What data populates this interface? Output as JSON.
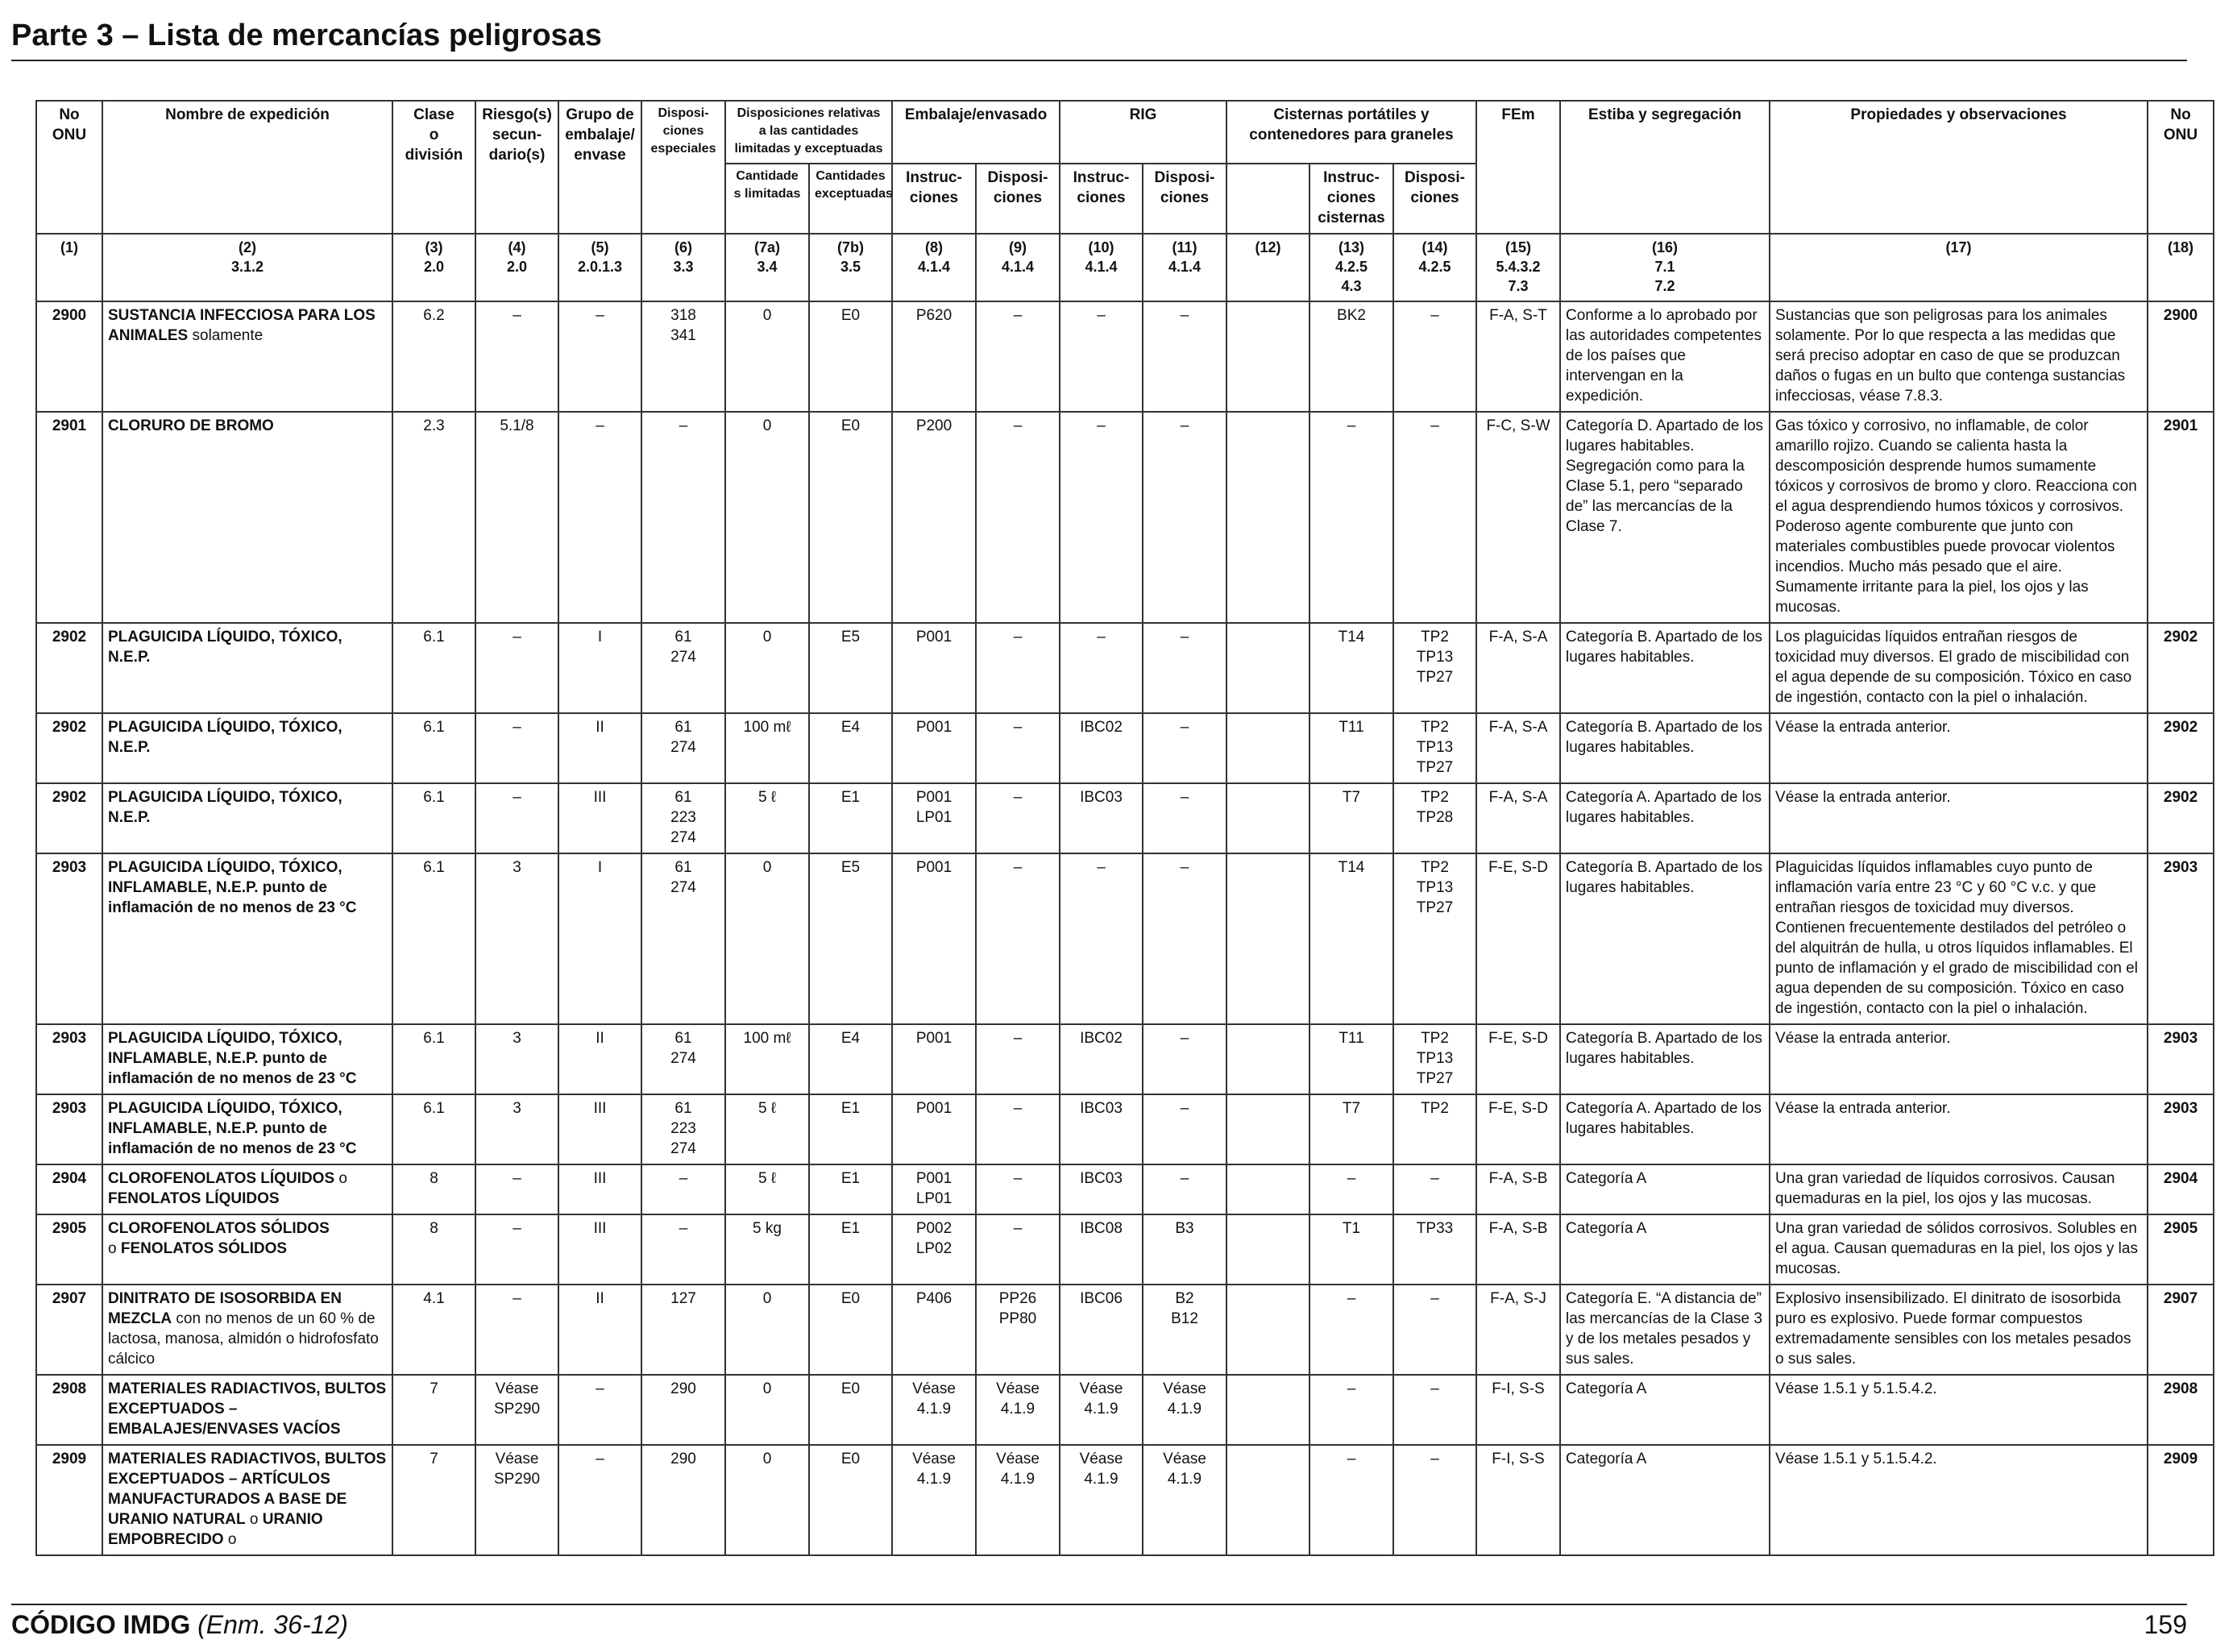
{
  "page": {
    "title": "Parte 3 – Lista de mercancías peligrosas",
    "footer_code": "CÓDIGO IMDG",
    "footer_edition": "(Enm. 36-12)",
    "page_number": "159"
  },
  "headers": {
    "no_onu": "No\nONU",
    "nombre": "Nombre de expedición",
    "clase": "Clase\no\ndivisión",
    "riesgos": "Riesgo(s)\nsecun-\ndario(s)",
    "grupo": "Grupo de\nembalaje/\nenvase",
    "disposiciones": "Disposi-\nciones\nespeciales",
    "cant_group": "Disposiciones relativas\na las cantidades\nlimitadas y exceptuadas",
    "cant_lim": "Cantidade\ns limitadas",
    "cant_exc": "Cantidades\nexceptuadas",
    "embalaje_group": "Embalaje/envasado",
    "emb_instr": "Instruc-\nciones",
    "emb_disp": "Disposi-\nciones",
    "rig_group": "RIG",
    "rig_instr": "Instruc-\nciones",
    "rig_disp": "Disposi-\nciones",
    "cist_group": "Cisternas portátiles y\ncontenedores para graneles",
    "cist_blank": "",
    "cist_instr": "Instruc-\nciones\ncisternas",
    "cist_disp": "Disposi-\nciones",
    "fem": "FEm",
    "estiba": "Estiba y segregación",
    "propiedades": "Propiedades y observaciones",
    "no_onu_right": "No\nONU"
  },
  "colnums": [
    "(1)",
    "(2)\n3.1.2",
    "(3)\n2.0",
    "(4)\n2.0",
    "(5)\n2.0.1.3",
    "(6)\n3.3",
    "(7a)\n3.4",
    "(7b)\n3.5",
    "(8)\n4.1.4",
    "(9)\n4.1.4",
    "(10)\n4.1.4",
    "(11)\n4.1.4",
    "(12)",
    "(13)\n4.2.5\n4.3",
    "(14)\n4.2.5",
    "(15)\n5.4.3.2\n7.3",
    "(16)\n7.1\n7.2",
    "(17)",
    "(18)"
  ],
  "rows": [
    {
      "un": "2900",
      "name": "SUSTANCIA INFECCIOSA PARA LOS ANIMALES",
      "name_suffix": " solamente",
      "clase": "6.2",
      "riesgo": "–",
      "grupo": "–",
      "disp": "318\n341",
      "cant_lim": "0",
      "cant_exc": "E0",
      "emb_instr": "P620",
      "emb_disp": "–",
      "rig_instr": "–",
      "rig_disp": "–",
      "c12": "",
      "cist_instr": "BK2",
      "cist_disp": "–",
      "fem": "F-A, S-T",
      "estiba": "Conforme a lo aprobado por las autoridades competentes de los países que intervengan en la expedición.",
      "prop": "Sustancias que son peligrosas para los animales solamente. Por lo que respecta a las medidas que será preciso adoptar en caso de que se produzcan daños o fugas en un bulto que contenga sustancias infecciosas, véase 7.8.3."
    },
    {
      "un": "2901",
      "name": "CLORURO DE BROMO",
      "name_suffix": "",
      "clase": "2.3",
      "riesgo": "5.1/8",
      "grupo": "–",
      "disp": "–",
      "cant_lim": "0",
      "cant_exc": "E0",
      "emb_instr": "P200",
      "emb_disp": "–",
      "rig_instr": "–",
      "rig_disp": "–",
      "c12": "",
      "cist_instr": "–",
      "cist_disp": "–",
      "fem": "F-C, S-W",
      "estiba": "Categoría D. Apartado de los lugares habitables. Segregación como para la Clase 5.1, pero “separado de” las mercancías de la Clase 7.",
      "prop": "Gas tóxico y corrosivo, no inflamable, de color amarillo rojizo. Cuando se calienta hasta la descomposición desprende humos sumamente tóxicos y corrosivos de bromo y cloro. Reacciona con el agua desprendiendo humos tóxicos y corrosivos. Poderoso agente comburente que junto con materiales combustibles puede provocar violentos incendios. Mucho más pesado que el aire. Sumamente irritante para la piel, los ojos y las mucosas."
    },
    {
      "un": "2902",
      "name": "PLAGUICIDA LÍQUIDO, TÓXICO, N.E.P.",
      "name_suffix": "",
      "clase": "6.1",
      "riesgo": "–",
      "grupo": "I",
      "disp": "61\n274",
      "cant_lim": "0",
      "cant_exc": "E5",
      "emb_instr": "P001",
      "emb_disp": "–",
      "rig_instr": "–",
      "rig_disp": "–",
      "c12": "",
      "cist_instr": "T14",
      "cist_disp": "TP2\nTP13\nTP27",
      "fem": "F-A, S-A",
      "estiba": "Categoría B. Apartado de los lugares habitables.",
      "prop": "Los plaguicidas líquidos entrañan riesgos de toxicidad muy diversos. El grado de miscibilidad con el agua depende de su composición. Tóxico en caso de ingestión, contacto con la piel o inhalación."
    },
    {
      "un": "2902",
      "name": "PLAGUICIDA LÍQUIDO, TÓXICO, N.E.P.",
      "name_suffix": "",
      "clase": "6.1",
      "riesgo": "–",
      "grupo": "II",
      "disp": "61\n274",
      "cant_lim": "100 mℓ",
      "cant_exc": "E4",
      "emb_instr": "P001",
      "emb_disp": "–",
      "rig_instr": "IBC02",
      "rig_disp": "–",
      "c12": "",
      "cist_instr": "T11",
      "cist_disp": "TP2\nTP13\nTP27",
      "fem": "F-A, S-A",
      "estiba": "Categoría B. Apartado de los lugares habitables.",
      "prop": "Véase la entrada anterior."
    },
    {
      "un": "2902",
      "name": "PLAGUICIDA LÍQUIDO, TÓXICO, N.E.P.",
      "name_suffix": "",
      "clase": "6.1",
      "riesgo": "–",
      "grupo": "III",
      "disp": "61\n223\n274",
      "cant_lim": "5 ℓ",
      "cant_exc": "E1",
      "emb_instr": "P001\nLP01",
      "emb_disp": "–",
      "rig_instr": "IBC03",
      "rig_disp": "–",
      "c12": "",
      "cist_instr": "T7",
      "cist_disp": "TP2\nTP28",
      "fem": "F-A, S-A",
      "estiba": "Categoría A. Apartado de los lugares habitables.",
      "prop": "Véase la entrada anterior."
    },
    {
      "un": "2903",
      "name": "PLAGUICIDA LÍQUIDO, TÓXICO, INFLAMABLE, N.E.P. punto de inflamación de no menos de 23 °C",
      "name_suffix": "",
      "clase": "6.1",
      "riesgo": "3",
      "grupo": "I",
      "disp": "61\n274",
      "cant_lim": "0",
      "cant_exc": "E5",
      "emb_instr": "P001",
      "emb_disp": "–",
      "rig_instr": "–",
      "rig_disp": "–",
      "c12": "",
      "cist_instr": "T14",
      "cist_disp": "TP2\nTP13\nTP27",
      "fem": "F-E, S-D",
      "estiba": "Categoría B. Apartado de los lugares habitables.",
      "prop": "Plaguicidas líquidos inflamables cuyo punto de inflamación varía entre 23 °C y 60 °C v.c. y que entrañan riesgos de toxicidad muy diversos. Contienen frecuentemente destilados del petróleo o del alquitrán de hulla, u otros líquidos inflamables. El punto de inflamación y el grado de miscibilidad con el agua dependen de su composición. Tóxico en caso de ingestión, contacto con la piel o inhalación."
    },
    {
      "un": "2903",
      "name": "PLAGUICIDA LÍQUIDO, TÓXICO, INFLAMABLE, N.E.P. punto de inflamación de no menos de 23 °C",
      "name_suffix": "",
      "clase": "6.1",
      "riesgo": "3",
      "grupo": "II",
      "disp": "61\n274",
      "cant_lim": "100 mℓ",
      "cant_exc": "E4",
      "emb_instr": "P001",
      "emb_disp": "–",
      "rig_instr": "IBC02",
      "rig_disp": "–",
      "c12": "",
      "cist_instr": "T11",
      "cist_disp": "TP2\nTP13\nTP27",
      "fem": "F-E, S-D",
      "estiba": "Categoría B. Apartado de los lugares habitables.",
      "prop": "Véase la entrada anterior."
    },
    {
      "un": "2903",
      "name": "PLAGUICIDA LÍQUIDO, TÓXICO, INFLAMABLE, N.E.P. punto de inflamación de no menos de 23 °C",
      "name_suffix": "",
      "clase": "6.1",
      "riesgo": "3",
      "grupo": "III",
      "disp": "61\n223\n274",
      "cant_lim": "5 ℓ",
      "cant_exc": "E1",
      "emb_instr": "P001",
      "emb_disp": "–",
      "rig_instr": "IBC03",
      "rig_disp": "–",
      "c12": "",
      "cist_instr": "T7",
      "cist_disp": "TP2",
      "fem": "F-E, S-D",
      "estiba": "Categoría A. Apartado de los lugares habitables.",
      "prop": "Véase la entrada anterior."
    },
    {
      "un": "2904",
      "name": "CLOROFENOLATOS LÍQUIDOS",
      "name_suffix": " o",
      "name_line2": "FENOLATOS LÍQUIDOS",
      "clase": "8",
      "riesgo": "–",
      "grupo": "III",
      "disp": "–",
      "cant_lim": "5 ℓ",
      "cant_exc": "E1",
      "emb_instr": "P001\nLP01",
      "emb_disp": "–",
      "rig_instr": "IBC03",
      "rig_disp": "–",
      "c12": "",
      "cist_instr": "–",
      "cist_disp": "–",
      "fem": "F-A, S-B",
      "estiba": "Categoría A",
      "prop": "Una gran variedad de líquidos corrosivos. Causan quemaduras en la piel, los ojos y las mucosas."
    },
    {
      "un": "2905",
      "name": "CLOROFENOLATOS SÓLIDOS",
      "name_suffix": "",
      "name_prefix2": "o ",
      "name_line2": "FENOLATOS SÓLIDOS",
      "clase": "8",
      "riesgo": "–",
      "grupo": "III",
      "disp": "–",
      "cant_lim": "5 kg",
      "cant_exc": "E1",
      "emb_instr": "P002\nLP02",
      "emb_disp": "–",
      "rig_instr": "IBC08",
      "rig_disp": "B3",
      "c12": "",
      "cist_instr": "T1",
      "cist_disp": "TP33",
      "fem": "F-A, S-B",
      "estiba": "Categoría A",
      "prop": "Una gran variedad de sólidos corrosivos. Solubles en el agua. Causan quemaduras en la piel, los ojos y las mucosas."
    },
    {
      "un": "2907",
      "name": "DINITRATO DE ISOSORBIDA EN MEZCLA",
      "name_suffix": " con no menos de un 60 % de lactosa, manosa, almidón o hidrofosfato cálcico",
      "clase": "4.1",
      "riesgo": "–",
      "grupo": "II",
      "disp": "127",
      "cant_lim": "0",
      "cant_exc": "E0",
      "emb_instr": "P406",
      "emb_disp": "PP26\nPP80",
      "rig_instr": "IBC06",
      "rig_disp": "B2\nB12",
      "c12": "",
      "cist_instr": "–",
      "cist_disp": "–",
      "fem": "F-A, S-J",
      "estiba": "Categoría E. “A distancia de” las mercancías de la Clase 3 y de los metales pesados y sus sales.",
      "prop": "Explosivo insensibilizado. El dinitrato de isosorbida puro es explosivo. Puede formar compuestos extremadamente sensibles con los metales pesados o sus sales."
    },
    {
      "un": "2908",
      "name": "MATERIALES RADIACTIVOS, BULTOS EXCEPTUADOS – EMBALAJES/ENVASES VACÍOS",
      "name_suffix": "",
      "clase": "7",
      "riesgo": "Véase\nSP290",
      "grupo": "–",
      "disp": "290",
      "cant_lim": "0",
      "cant_exc": "E0",
      "emb_instr": "Véase\n4.1.9",
      "emb_disp": "Véase\n4.1.9",
      "rig_instr": "Véase\n4.1.9",
      "rig_disp": "Véase\n4.1.9",
      "c12": "",
      "cist_instr": "–",
      "cist_disp": "–",
      "fem": "F-I, S-S",
      "estiba": "Categoría A",
      "prop": "Véase 1.5.1 y 5.1.5.4.2."
    },
    {
      "un": "2909",
      "name": "MATERIALES RADIACTIVOS, BULTOS EXCEPTUADOS – ARTÍCULOS MANUFACTURADOS A BASE DE URANIO NATURAL",
      "name_suffix": " o ",
      "name_tail": "URANIO EMPOBRECIDO",
      "name_tail_suffix": " o",
      "clase": "7",
      "riesgo": "Véase\nSP290",
      "grupo": "–",
      "disp": "290",
      "cant_lim": "0",
      "cant_exc": "E0",
      "emb_instr": "Véase\n4.1.9",
      "emb_disp": "Véase\n4.1.9",
      "rig_instr": "Véase\n4.1.9",
      "rig_disp": "Véase\n4.1.9",
      "c12": "",
      "cist_instr": "–",
      "cist_disp": "–",
      "fem": "F-I, S-S",
      "estiba": "Categoría A",
      "prop": "Véase 1.5.1 y 5.1.5.4.2."
    }
  ]
}
